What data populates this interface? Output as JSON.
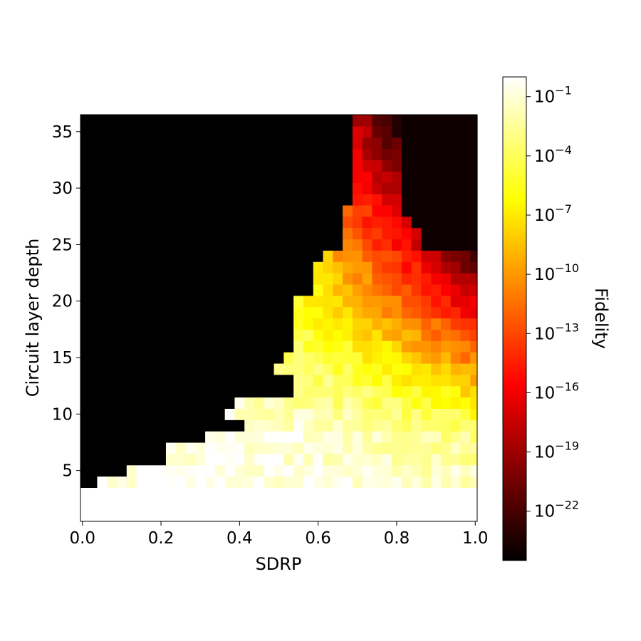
{
  "chart_data": {
    "type": "heatmap",
    "title": "",
    "xlabel": "SDRP",
    "ylabel": "Circuit layer depth",
    "xlim": [
      -0.005,
      1.005
    ],
    "ylim": [
      0.5,
      36.5
    ],
    "x_ticks": [
      {
        "value": 0.0,
        "label": "0.0"
      },
      {
        "value": 0.2,
        "label": "0.2"
      },
      {
        "value": 0.4,
        "label": "0.4"
      },
      {
        "value": 0.6,
        "label": "0.6"
      },
      {
        "value": 0.8,
        "label": "0.8"
      },
      {
        "value": 1.0,
        "label": "1.0"
      }
    ],
    "y_ticks": [
      {
        "value": 5,
        "label": "5"
      },
      {
        "value": 10,
        "label": "10"
      },
      {
        "value": 15,
        "label": "15"
      },
      {
        "value": 20,
        "label": "20"
      },
      {
        "value": 25,
        "label": "25"
      },
      {
        "value": 30,
        "label": "30"
      },
      {
        "value": 35,
        "label": "35"
      }
    ],
    "colormap": "hot",
    "colorbar": {
      "label": "Fidelity",
      "scale": "log",
      "range_exponent": [
        -24.5,
        0
      ],
      "ticks": [
        {
          "exponent": -1,
          "label_base": "10",
          "label_exp": "−1"
        },
        {
          "exponent": -4,
          "label_base": "10",
          "label_exp": "−4"
        },
        {
          "exponent": -7,
          "label_base": "10",
          "label_exp": "−7"
        },
        {
          "exponent": -10,
          "label_base": "10",
          "label_exp": "−10"
        },
        {
          "exponent": -13,
          "label_base": "10",
          "label_exp": "−13"
        },
        {
          "exponent": -16,
          "label_base": "10",
          "label_exp": "−16"
        },
        {
          "exponent": -19,
          "label_base": "10",
          "label_exp": "−19"
        },
        {
          "exponent": -22,
          "label_base": "10",
          "label_exp": "−22"
        }
      ]
    },
    "depths": [
      1,
      36
    ],
    "sdrp_range": [
      0.0,
      1.0
    ],
    "sdrp_step": 0.025,
    "fidelity_regions": [
      {
        "from_depth": 1,
        "to_depth": 3,
        "sdrp_min": 0.0,
        "sdrp_max": 1.0,
        "log10_fidelity": 0
      },
      {
        "from_depth": 4,
        "to_depth": 36,
        "sdrp_min_above_threshold": [
          0.03,
          0.12,
          0.21,
          0.21,
          0.32,
          0.42,
          0.36,
          0.38,
          0.53,
          0.53,
          0.5,
          0.51,
          0.54,
          0.54,
          0.54,
          0.54,
          0.54,
          0.6,
          0.6,
          0.6,
          0.62,
          0.66,
          0.66,
          0.66,
          0.66,
          0.68,
          0.68,
          0.68,
          0.68,
          0.69,
          0.69,
          0.7,
          0.7
        ],
        "below_threshold_log10_fidelity": -24.5
      }
    ],
    "upper_right_dark_region": {
      "from_depth": 25,
      "to_depth": 36,
      "sdrp_min": 0.82,
      "log10_fidelity": -24
    }
  }
}
